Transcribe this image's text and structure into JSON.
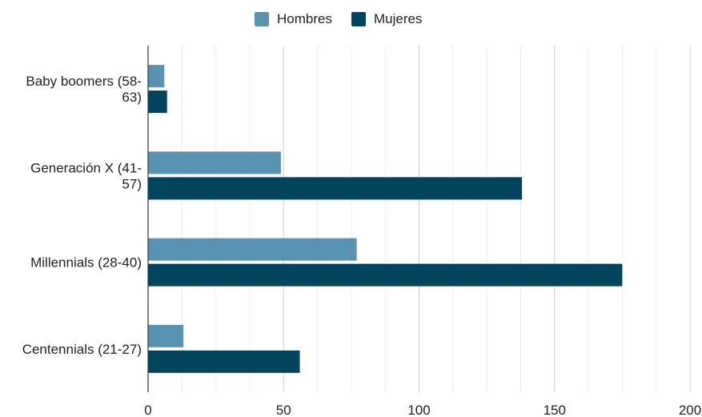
{
  "chart_data": {
    "type": "bar",
    "orientation": "horizontal",
    "title": "",
    "xlabel": "",
    "ylabel": "",
    "categories": [
      [
        "Baby boomers (58-",
        "63)"
      ],
      [
        "Generación X (41-",
        "57)"
      ],
      [
        "Millennials (28-40)"
      ],
      [
        "Centennials (21-27)"
      ]
    ],
    "series": [
      {
        "name": "Hombres",
        "color": "#5a93b2",
        "values": [
          6,
          49,
          77,
          13
        ]
      },
      {
        "name": "Mujeres",
        "color": "#03445e",
        "values": [
          7,
          138,
          175,
          56
        ]
      }
    ],
    "xlim": [
      0,
      200
    ],
    "xticks": [
      0,
      50,
      100,
      150,
      200
    ],
    "grid": "vertical, every 12.5",
    "legend_position": "top"
  }
}
